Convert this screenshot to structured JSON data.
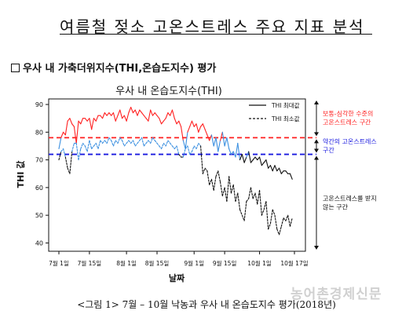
{
  "page": {
    "main_title": "여름철 젖소 고온스트레스 주요 지표 분석",
    "section_heading": "우사 내 가축더위지수(THI,온습도지수) 평가",
    "caption": "<그림 1> 7월 – 10월 낙농과 우사 내 온습도지수 평가(2018년)",
    "watermark": "농어촌경제신문"
  },
  "chart_data": {
    "type": "line",
    "title": "우사 내 온습도지수(THI)",
    "xlabel": "날짜",
    "ylabel": "THI 값",
    "ylim": [
      37,
      92
    ],
    "yticks": [
      40,
      50,
      60,
      70,
      80,
      90
    ],
    "xticks": [
      "7월 1일",
      "7월 15일",
      "8월 1일",
      "8월 15일",
      "9월 1일",
      "9월 15일",
      "10월 1일",
      "10월 17일"
    ],
    "x_tick_days": [
      0,
      14,
      31,
      45,
      62,
      76,
      92,
      108
    ],
    "legend": {
      "position": "top-right",
      "entries": [
        "THI 최대값",
        "THI 최소값"
      ]
    },
    "thresholds": [
      {
        "value": 78,
        "color": "#ff2020"
      },
      {
        "value": 72,
        "color": "#1a1adf"
      }
    ],
    "segment_colors": {
      "above_78": "#ff2020",
      "between_72_78": "#3a8fe0",
      "below_72": "#111111"
    },
    "annotations": [
      {
        "text_lines": [
          "보통-심각한 수준의",
          "고온스트레스 구간"
        ],
        "color": "#ff2020",
        "range": [
          78,
          92
        ]
      },
      {
        "text_lines": [
          "약간의 고온스트레스",
          "구간"
        ],
        "color": "#1a1adf",
        "range": [
          72,
          78
        ]
      },
      {
        "text_lines": [
          "고온스트레스를 받지",
          "않는 구간"
        ],
        "color": "#111111",
        "range": [
          37,
          72
        ]
      }
    ],
    "series": [
      {
        "name": "THI 최대값",
        "style": "solid",
        "x": [
          0,
          1,
          2,
          3,
          4,
          5,
          6,
          7,
          8,
          9,
          10,
          11,
          12,
          13,
          14,
          15,
          16,
          17,
          18,
          19,
          20,
          21,
          22,
          23,
          24,
          25,
          26,
          27,
          28,
          29,
          30,
          31,
          32,
          33,
          34,
          35,
          36,
          37,
          38,
          39,
          40,
          41,
          42,
          43,
          44,
          45,
          46,
          47,
          48,
          49,
          50,
          51,
          52,
          53,
          54,
          55,
          56,
          57,
          58,
          59,
          60,
          61,
          62,
          63,
          64,
          65,
          66,
          67,
          68,
          69,
          70,
          71,
          72,
          73,
          74,
          75,
          76,
          77,
          78,
          79,
          80,
          81,
          82,
          83,
          84,
          85,
          86,
          87,
          88,
          89,
          90,
          91,
          92,
          93,
          94,
          95,
          96,
          97,
          98,
          99,
          100,
          101,
          102,
          103,
          104,
          105,
          106,
          107
        ],
        "y": [
          74,
          78,
          80,
          79,
          84,
          85,
          83,
          82,
          76,
          84,
          83,
          85,
          85,
          84,
          85,
          81,
          85,
          84,
          86,
          86,
          85,
          87,
          86,
          87,
          86,
          87,
          84,
          86,
          88,
          85,
          86,
          84,
          87,
          89,
          87,
          88,
          86,
          88,
          87,
          86,
          85,
          84,
          88,
          86,
          87,
          86,
          85,
          83,
          84,
          85,
          87,
          86,
          88,
          85,
          83,
          84,
          82,
          77,
          74,
          80,
          82,
          84,
          82,
          83,
          80,
          82,
          83,
          81,
          79,
          77,
          79,
          75,
          78,
          73,
          77,
          80,
          75,
          78,
          74,
          72,
          73,
          71,
          76,
          70,
          72,
          69,
          71,
          73,
          69,
          70,
          71,
          70,
          71,
          68,
          69,
          70,
          67,
          68,
          66,
          68,
          66,
          67,
          65,
          66,
          66,
          65,
          65,
          63
        ]
      },
      {
        "name": "THI 최소값",
        "style": "dashed",
        "x": [
          0,
          1,
          2,
          3,
          4,
          5,
          6,
          7,
          8,
          9,
          10,
          11,
          12,
          13,
          14,
          15,
          16,
          17,
          18,
          19,
          20,
          21,
          22,
          23,
          24,
          25,
          26,
          27,
          28,
          29,
          30,
          31,
          32,
          33,
          34,
          35,
          36,
          37,
          38,
          39,
          40,
          41,
          42,
          43,
          44,
          45,
          46,
          47,
          48,
          49,
          50,
          51,
          52,
          53,
          54,
          55,
          56,
          57,
          58,
          59,
          60,
          61,
          62,
          63,
          64,
          65,
          66,
          67,
          68,
          69,
          70,
          71,
          72,
          73,
          74,
          75,
          76,
          77,
          78,
          79,
          80,
          81,
          82,
          83,
          84,
          85,
          86,
          87,
          88,
          89,
          90,
          91,
          92,
          93,
          94,
          95,
          96,
          97,
          98,
          99,
          100,
          101,
          102,
          103,
          104,
          105,
          106,
          107
        ],
        "y": [
          70,
          73,
          74,
          71,
          67,
          65,
          73,
          76,
          76,
          70,
          74,
          76,
          75,
          73,
          77,
          74,
          75,
          76,
          74,
          77,
          76,
          77,
          76,
          78,
          77,
          75,
          77,
          76,
          78,
          77,
          75,
          76,
          77,
          76,
          77,
          75,
          76,
          77,
          78,
          75,
          76,
          77,
          76,
          78,
          77,
          76,
          75,
          74,
          76,
          75,
          77,
          76,
          75,
          74,
          75,
          72,
          71,
          71,
          74,
          75,
          72,
          73,
          75,
          74,
          76,
          75,
          65,
          67,
          66,
          61,
          63,
          59,
          64,
          66,
          62,
          57,
          60,
          55,
          64,
          58,
          61,
          55,
          58,
          52,
          50,
          48,
          55,
          56,
          60,
          56,
          58,
          54,
          59,
          50,
          52,
          55,
          45,
          47,
          52,
          50,
          45,
          43,
          46,
          49,
          48,
          50,
          46,
          49
        ]
      }
    ]
  }
}
